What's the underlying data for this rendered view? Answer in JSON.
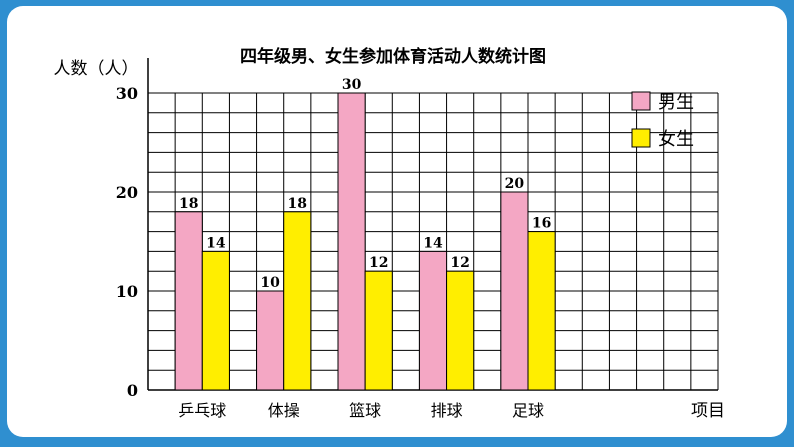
{
  "chart_data": {
    "type": "bar",
    "title": "四年级男、女生参加体育活动人数统计图",
    "ylabel": "人数（人）",
    "xlabel": "项目",
    "categories": [
      "乒乓球",
      "体操",
      "篮球",
      "排球",
      "足球"
    ],
    "series": [
      {
        "name": "男生",
        "values": [
          18,
          10,
          30,
          14,
          20
        ],
        "color": "#f4a7c4"
      },
      {
        "name": "女生",
        "values": [
          14,
          18,
          12,
          12,
          16
        ],
        "color": "#ffee00"
      }
    ],
    "ylim": [
      0,
      30
    ],
    "yticks": [
      0,
      10,
      20,
      30
    ],
    "grid": true,
    "legend_position": "top-right"
  },
  "colors": {
    "frame": "#2f8fd0",
    "card": "#ffffff",
    "grid": "#000000",
    "bar_outline": "#000000"
  }
}
